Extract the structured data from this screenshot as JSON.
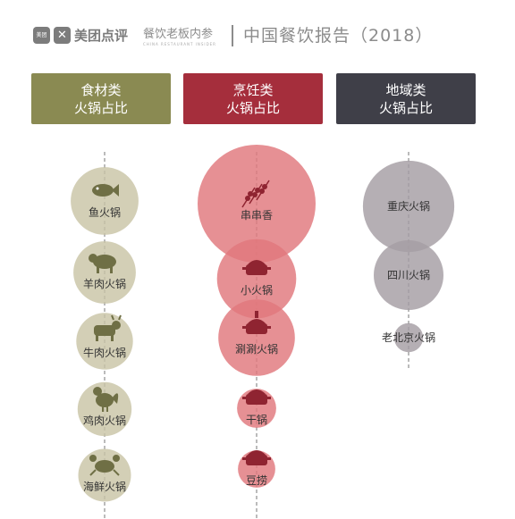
{
  "header": {
    "logo_small": "美团",
    "brand": "美团点评",
    "sub_brand": "餐饮老板内参",
    "sub_brand_en": "CHINA RESTAURANT INSIDER",
    "report_title": "中国餐饮报告（2018）"
  },
  "colors": {
    "olive": "#8a8a52",
    "olive_bubble": "#c9c4a6",
    "red": "#a52e3c",
    "red_bubble": "#e0787d",
    "dark": "#3f3f48",
    "gray_bubble": "#a59ea3"
  },
  "chart_data": {
    "type": "bubble",
    "groups": [
      {
        "title_line1": "食材类",
        "title_line2": "火锅占比",
        "color": "#8a8a52",
        "bubble_color": "#c9c4a6",
        "items": [
          {
            "label": "鱼火锅",
            "icon": "fish-icon",
            "value": 33
          },
          {
            "label": "羊肉火锅",
            "icon": "sheep-icon",
            "value": 28
          },
          {
            "label": "牛肉火锅",
            "icon": "cow-icon",
            "value": 23
          },
          {
            "label": "鸡肉火锅",
            "icon": "rooster-icon",
            "value": 21
          },
          {
            "label": "海鲜火锅",
            "icon": "crab-icon",
            "value": 20
          }
        ]
      },
      {
        "title_line1": "烹饪类",
        "title_line2": "火锅占比",
        "color": "#a52e3c",
        "bubble_color": "#e0787d",
        "items": [
          {
            "label": "串串香",
            "icon": "skewer-icon",
            "value": 100
          },
          {
            "label": "小火锅",
            "icon": "pot-icon",
            "value": 45
          },
          {
            "label": "涮涮火锅",
            "icon": "hotpot-icon",
            "value": 42
          },
          {
            "label": "干锅",
            "icon": "dry-pot-icon",
            "value": 11
          },
          {
            "label": "豆捞",
            "icon": "pot-lid-icon",
            "value": 10
          }
        ]
      },
      {
        "title_line1": "地域类",
        "title_line2": "火锅占比",
        "color": "#3f3f48",
        "bubble_color": "#a59ea3",
        "items": [
          {
            "label": "重庆火锅",
            "value": 60
          },
          {
            "label": "四川火锅",
            "value": 35
          },
          {
            "label": "老北京火锅",
            "value": 6
          }
        ]
      }
    ]
  }
}
